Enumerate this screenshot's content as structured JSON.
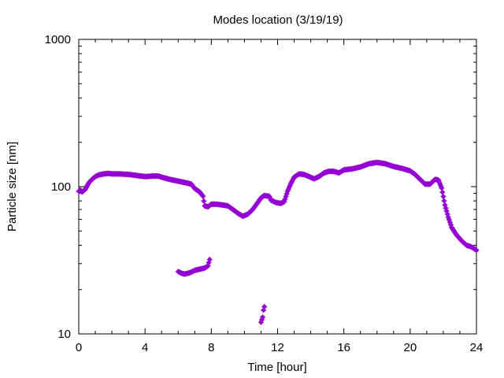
{
  "chart_data": {
    "type": "scatter",
    "title": "Modes location (3/19/19)",
    "xlabel": "Time [hour]",
    "ylabel": "Particle size [nm]",
    "xlim": [
      0,
      24
    ],
    "ylim": [
      10,
      1000
    ],
    "yscale": "log",
    "xticks": [
      0,
      4,
      8,
      12,
      16,
      20,
      24
    ],
    "xtick_labels": [
      "0",
      "4",
      "8",
      "12",
      "16",
      "20",
      "24"
    ],
    "yticks": [
      10,
      100,
      1000
    ],
    "ytick_labels": [
      "10",
      "100",
      "1000"
    ],
    "grid": false,
    "marker_color": "#9400d3",
    "series": [
      {
        "mode": "main",
        "points": [
          [
            0.0,
            93
          ],
          [
            0.1,
            95
          ],
          [
            0.2,
            92
          ],
          [
            0.3,
            94
          ],
          [
            0.4,
            96
          ],
          [
            0.5,
            101
          ],
          [
            0.6,
            106
          ],
          [
            0.8,
            112
          ],
          [
            1.0,
            117
          ],
          [
            1.2,
            120
          ],
          [
            1.5,
            122
          ],
          [
            1.8,
            123
          ],
          [
            2.0,
            122
          ],
          [
            2.5,
            122
          ],
          [
            3.0,
            121
          ],
          [
            3.5,
            119
          ],
          [
            4.0,
            117
          ],
          [
            4.5,
            118
          ],
          [
            4.8,
            118
          ],
          [
            5.0,
            116
          ],
          [
            5.5,
            112
          ],
          [
            6.0,
            109
          ],
          [
            6.5,
            106
          ],
          [
            6.8,
            104
          ],
          [
            7.0,
            97
          ],
          [
            7.3,
            92
          ],
          [
            7.5,
            86
          ],
          [
            7.6,
            74
          ],
          [
            7.8,
            73
          ],
          [
            8.0,
            76
          ],
          [
            8.3,
            76
          ],
          [
            8.7,
            75
          ],
          [
            9.0,
            74
          ],
          [
            9.3,
            70
          ],
          [
            9.6,
            66
          ],
          [
            9.9,
            63
          ],
          [
            10.2,
            65
          ],
          [
            10.5,
            70
          ],
          [
            10.8,
            78
          ],
          [
            11.0,
            84
          ],
          [
            11.2,
            87
          ],
          [
            11.5,
            86
          ],
          [
            11.6,
            81
          ],
          [
            11.9,
            78
          ],
          [
            12.2,
            77
          ],
          [
            12.4,
            79
          ],
          [
            12.6,
            93
          ],
          [
            12.8,
            105
          ],
          [
            13.0,
            116
          ],
          [
            13.3,
            122
          ],
          [
            13.6,
            121
          ],
          [
            13.9,
            117
          ],
          [
            14.2,
            113
          ],
          [
            14.5,
            117
          ],
          [
            14.8,
            124
          ],
          [
            15.1,
            127
          ],
          [
            15.4,
            127
          ],
          [
            15.7,
            124
          ],
          [
            16.0,
            130
          ],
          [
            16.5,
            132
          ],
          [
            17.0,
            136
          ],
          [
            17.5,
            143
          ],
          [
            18.0,
            146
          ],
          [
            18.5,
            143
          ],
          [
            19.0,
            137
          ],
          [
            19.5,
            133
          ],
          [
            20.0,
            128
          ],
          [
            20.3,
            121
          ],
          [
            20.6,
            112
          ],
          [
            20.9,
            104
          ],
          [
            21.2,
            104
          ],
          [
            21.5,
            112
          ],
          [
            21.7,
            111
          ],
          [
            21.9,
            98
          ],
          [
            22.1,
            75
          ],
          [
            22.3,
            62
          ],
          [
            22.5,
            53
          ],
          [
            22.8,
            47
          ],
          [
            23.1,
            43
          ],
          [
            23.4,
            40
          ],
          [
            23.7,
            39
          ],
          [
            24.0,
            37
          ]
        ]
      },
      {
        "mode": "secondary",
        "points": [
          [
            6.0,
            26.5
          ],
          [
            6.2,
            25.8
          ],
          [
            6.4,
            25.5
          ],
          [
            6.7,
            26.0
          ],
          [
            7.0,
            27.0
          ],
          [
            7.3,
            27.5
          ],
          [
            7.6,
            28.0
          ],
          [
            7.8,
            29.0
          ],
          [
            7.85,
            30.5
          ],
          [
            7.9,
            32.0
          ]
        ]
      },
      {
        "mode": "small",
        "points": [
          [
            11.0,
            12.0
          ],
          [
            11.1,
            13.0
          ],
          [
            11.15,
            14.5
          ],
          [
            11.2,
            15.3
          ]
        ]
      }
    ]
  }
}
